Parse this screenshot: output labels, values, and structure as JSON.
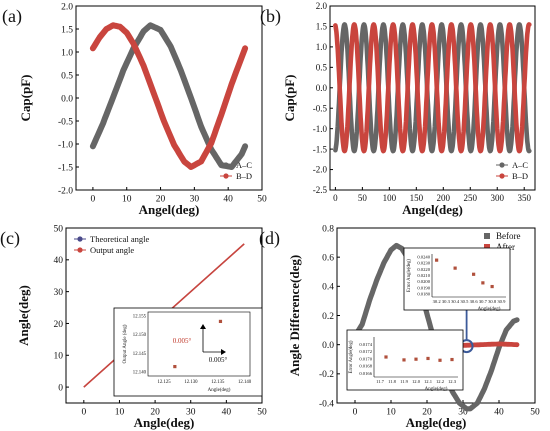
{
  "chart_data": [
    {
      "panel_label": "(a)",
      "type": "line",
      "ylabel": "Cap(pF)",
      "xlabel": "Angel(deg)",
      "xlim": [
        -5,
        50
      ],
      "ylim": [
        -2.0,
        2.0
      ],
      "xticks": [
        "0",
        "10",
        "20",
        "30",
        "40",
        "50"
      ],
      "yticks": [
        "-2.0",
        "-1.5",
        "-1.0",
        "-0.5",
        "0.0",
        "0.5",
        "1.0",
        "1.5",
        "2.0"
      ],
      "legend_position": "bottom-right",
      "series": [
        {
          "name": "A–C",
          "color": "#666666",
          "x": [
            0,
            3,
            6,
            9,
            12,
            15,
            17,
            20,
            23,
            26,
            29,
            32,
            35,
            38,
            41,
            44,
            45
          ],
          "y": [
            -1.05,
            -0.55,
            0.02,
            0.6,
            1.08,
            1.45,
            1.58,
            1.48,
            1.12,
            0.6,
            0.0,
            -0.62,
            -1.12,
            -1.46,
            -1.5,
            -1.22,
            -1.05
          ]
        },
        {
          "name": "B–D",
          "color": "#c9453e",
          "x": [
            0,
            2,
            4,
            6,
            8,
            10,
            12,
            15,
            18,
            21,
            24,
            27,
            29,
            32,
            35,
            38,
            41,
            45
          ],
          "y": [
            1.08,
            1.32,
            1.5,
            1.58,
            1.55,
            1.42,
            1.18,
            0.7,
            0.1,
            -0.5,
            -1.02,
            -1.38,
            -1.5,
            -1.38,
            -0.98,
            -0.36,
            0.3,
            1.08
          ]
        }
      ]
    },
    {
      "panel_label": "(b)",
      "type": "line",
      "ylabel": "Cap(pF)",
      "xlabel": "Angel(deg)",
      "xlim": [
        -10,
        370
      ],
      "ylim": [
        -2.5,
        2.0
      ],
      "xticks": [
        "0",
        "50",
        "100",
        "150",
        "200",
        "250",
        "300",
        "350"
      ],
      "yticks": [
        "-2.5",
        "-2.0",
        "-1.5",
        "-1.0",
        "-0.5",
        "0.0",
        "0.5",
        "1.0",
        "1.5",
        "2.0"
      ],
      "legend_position": "bottom-right",
      "period_deg": 36,
      "amplitude_pf": 1.55,
      "series": [
        {
          "name": "A–C",
          "color": "#666666",
          "phase_deg": -8
        },
        {
          "name": "B–D",
          "color": "#c9453e",
          "phase_deg": 10
        }
      ]
    },
    {
      "panel_label": "(c)",
      "type": "line",
      "ylabel": "Angle(deg)",
      "xlabel": "Angle(deg)",
      "xlim": [
        -5,
        50
      ],
      "ylim": [
        -5,
        50
      ],
      "xticks": [
        "0",
        "10",
        "20",
        "30",
        "40",
        "50"
      ],
      "yticks": [
        "0",
        "10",
        "20",
        "30",
        "40",
        "50"
      ],
      "legend_position": "top-left",
      "series": [
        {
          "name": "Theoretical angle",
          "color": "#4a4a8a",
          "x": [
            0,
            45
          ],
          "y": [
            0,
            45
          ]
        },
        {
          "name": "Output angle",
          "color": "#c9453e",
          "x": [
            0,
            45
          ],
          "y": [
            0,
            45
          ]
        }
      ],
      "inset": {
        "ylabel": "Output Angle (deg)",
        "xlabel": "Angle(deg)",
        "xlim": [
          12.122,
          12.141
        ],
        "ylim": [
          12.139,
          12.156
        ],
        "xticks": [
          "12.125",
          "12.130",
          "12.135",
          "12.140"
        ],
        "yticks": [
          "12.140",
          "12.145",
          "12.150",
          "12.155"
        ],
        "points": [
          [
            12.127,
            12.1415
          ],
          [
            12.1355,
            12.1535
          ]
        ],
        "annotation_v": "0.005°",
        "annotation_h": "0.005°"
      }
    },
    {
      "panel_label": "(d)",
      "type": "line",
      "ylabel": "Angle Difference(deg)",
      "xlabel": "Angle(deg)",
      "xlim": [
        -5,
        50
      ],
      "ylim": [
        -0.4,
        0.8
      ],
      "xticks": [
        "0",
        "10",
        "20",
        "30",
        "40",
        "50"
      ],
      "yticks": [
        "-0.4",
        "-0.2",
        "0.0",
        "0.2",
        "0.4",
        "0.6",
        "0.8"
      ],
      "legend_position": "top-right",
      "series": [
        {
          "name": "Before",
          "color": "#666666",
          "x": [
            0,
            0.5,
            1,
            2,
            4,
            6,
            8,
            10,
            11.5,
            13,
            15,
            17,
            19,
            21,
            23,
            25,
            27,
            29,
            31,
            32,
            34,
            36,
            38,
            40,
            42,
            44,
            45
          ],
          "y": [
            0.06,
            0.08,
            0.1,
            0.14,
            0.3,
            0.44,
            0.56,
            0.65,
            0.68,
            0.66,
            0.58,
            0.46,
            0.3,
            0.12,
            -0.05,
            -0.2,
            -0.32,
            -0.4,
            -0.44,
            -0.44,
            -0.4,
            -0.3,
            -0.17,
            -0.02,
            0.1,
            0.16,
            0.17
          ]
        },
        {
          "name": "After",
          "color": "#c9453e",
          "x": [
            0,
            10,
            20,
            30,
            40,
            45
          ],
          "y": [
            -0.02,
            0.015,
            0.01,
            -0.005,
            0.005,
            0.0
          ]
        }
      ],
      "inset_top": {
        "ylabel": "Error Angle(deg)",
        "xlabel": "Angle(deg)",
        "xlim": [
          30.15,
          30.95
        ],
        "ylim": [
          0.0175,
          0.0245
        ],
        "xticks": [
          "30.2",
          "30.3",
          "30.4",
          "30.5",
          "30.6",
          "30.7",
          "30.8",
          "30.9"
        ],
        "yticks": [
          "0.0180",
          "0.0190",
          "0.0200",
          "0.0210",
          "0.0220",
          "0.0230",
          "0.0240"
        ],
        "points": [
          [
            30.2,
            0.0235
          ],
          [
            30.4,
            0.0222
          ],
          [
            30.6,
            0.0212
          ],
          [
            30.7,
            0.0198
          ],
          [
            30.8,
            0.0192
          ]
        ]
      },
      "inset_bottom": {
        "ylabel": "Error Angle(deg)",
        "xlabel": "Angle(deg)",
        "xlim": [
          11.65,
          12.35
        ],
        "ylim": [
          0.0165,
          0.0176
        ],
        "xticks": [
          "11.7",
          "11.8",
          "11.9",
          "12.0",
          "12.1",
          "12.2",
          "12.3"
        ],
        "yticks": [
          "0.0166",
          "0.0168",
          "0.0170",
          "0.0172",
          "0.0174"
        ],
        "points": [
          [
            11.75,
            0.01705
          ],
          [
            11.9,
            0.01697
          ],
          [
            12.0,
            0.01699
          ],
          [
            12.1,
            0.01701
          ],
          [
            12.2,
            0.01696
          ],
          [
            12.3,
            0.01698
          ]
        ]
      }
    }
  ]
}
